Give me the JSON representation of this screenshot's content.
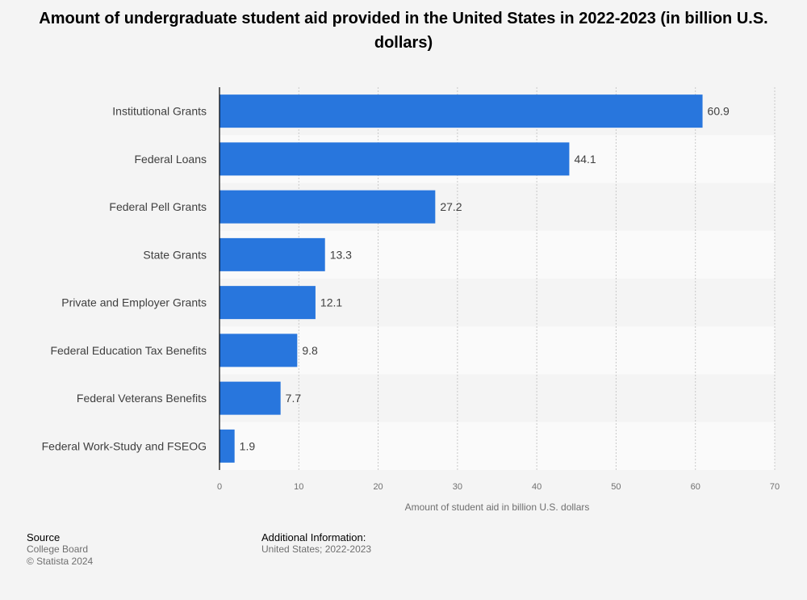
{
  "title": "Amount of undergraduate student aid provided in the United States in 2022-2023 (in billion U.S. dollars)",
  "chart_data": {
    "type": "bar",
    "orientation": "horizontal",
    "categories": [
      "Institutional Grants",
      "Federal Loans",
      "Federal Pell Grants",
      "State Grants",
      "Private and Employer Grants",
      "Federal Education Tax Benefits",
      "Federal Veterans Benefits",
      "Federal Work-Study and FSEOG"
    ],
    "values": [
      60.9,
      44.1,
      27.2,
      13.3,
      12.1,
      9.8,
      7.7,
      1.9
    ],
    "value_labels": [
      "60.9",
      "44.1",
      "27.2",
      "13.3",
      "12.1",
      "9.8",
      "7.7",
      "1.9"
    ],
    "xlabel": "Amount of student aid in billion U.S. dollars",
    "xlim": [
      0,
      70
    ],
    "xticks": [
      0,
      10,
      20,
      30,
      40,
      50,
      60,
      70
    ],
    "xtick_labels": [
      "0",
      "10",
      "20",
      "30",
      "40",
      "50",
      "60",
      "70"
    ],
    "bar_color": "#2876dd",
    "grid": true
  },
  "footer": {
    "source_heading": "Source",
    "source_name": "College Board",
    "copyright": "© Statista 2024",
    "info_heading": "Additional Information:",
    "info_text": "United States; 2022-2023"
  }
}
